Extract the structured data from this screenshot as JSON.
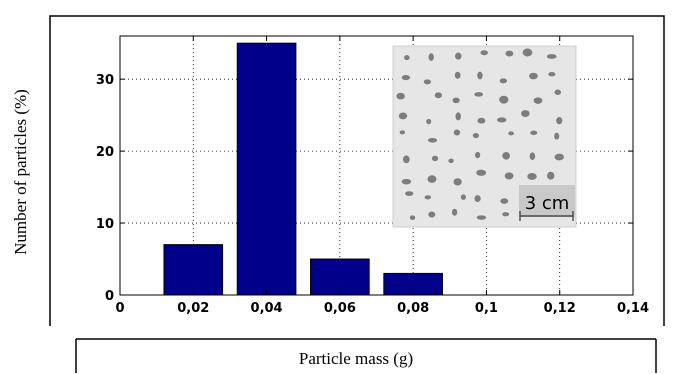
{
  "chart_data": {
    "type": "bar",
    "xlabel": "Particle mass (g)",
    "ylabel": "Number of particles (%)",
    "x": [
      0.02,
      0.04,
      0.06,
      0.08
    ],
    "values": [
      7,
      35,
      5,
      3
    ],
    "bar_width": 0.016,
    "xlim": [
      0,
      0.14
    ],
    "ylim": [
      0,
      36
    ],
    "xticks": [
      0,
      0.02,
      0.04,
      0.06,
      0.08,
      0.1,
      0.12,
      0.14
    ],
    "xtick_labels": [
      "0",
      "0,02",
      "0,04",
      "0,06",
      "0,08",
      "0,1",
      "0,12",
      "0,14"
    ],
    "yticks": [
      0,
      10,
      20,
      30
    ],
    "ytick_labels": [
      "0",
      "10",
      "20",
      "30"
    ],
    "grid": true,
    "bar_color": "#00008b",
    "inset": {
      "scale_label": "3 cm"
    }
  }
}
